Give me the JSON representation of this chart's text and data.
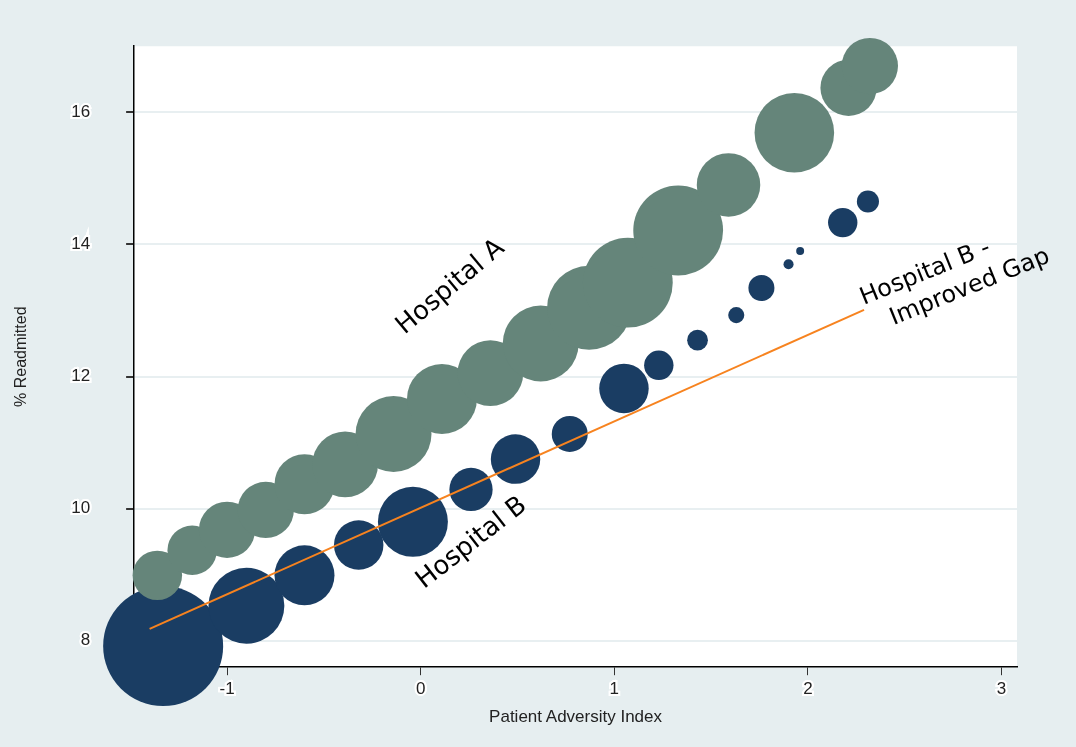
{
  "chart_data": {
    "type": "bubble",
    "xlabel": "Patient Adversity Index",
    "ylabel": "% Readmitted",
    "xlim": [
      -1.48,
      3.08
    ],
    "xticks": [
      -1,
      0,
      1,
      2,
      3
    ],
    "ylim": [
      7.6,
      17.0
    ],
    "yticks": [
      8,
      10,
      12,
      14,
      16
    ],
    "grid": "y",
    "legend": false,
    "series": [
      {
        "name": "Hospital A",
        "color": "#65857a",
        "x": [
          -1.36,
          -1.18,
          -1.0,
          -0.8,
          -0.6,
          -0.39,
          -0.14,
          0.11,
          0.36,
          0.62,
          0.87,
          1.07,
          1.33,
          1.59,
          1.93,
          2.21,
          2.32
        ],
        "values": [
          8.99,
          9.37,
          9.68,
          9.98,
          10.37,
          10.67,
          11.13,
          11.66,
          12.05,
          12.5,
          13.04,
          13.42,
          14.21,
          14.9,
          15.69,
          16.37,
          16.7
        ],
        "sizes": [
          0.17,
          0.17,
          0.22,
          0.22,
          0.25,
          0.3,
          0.4,
          0.34,
          0.3,
          0.4,
          0.49,
          0.56,
          0.56,
          0.28,
          0.44,
          0.22,
          0.22
        ]
      },
      {
        "name": "Hospital B",
        "color": "#1a3d63",
        "x": [
          -1.33,
          -0.9,
          -0.6,
          -0.32,
          -0.04,
          0.26,
          0.49,
          0.77,
          1.05,
          1.23,
          1.43,
          1.63,
          1.76,
          1.9,
          1.96,
          2.18,
          2.31
        ],
        "values": [
          7.92,
          8.53,
          8.99,
          9.45,
          9.8,
          10.29,
          10.75,
          11.13,
          11.82,
          12.17,
          12.55,
          12.93,
          13.34,
          13.7,
          13.9,
          14.33,
          14.65
        ],
        "sizes": [
          1,
          0.4,
          0.25,
          0.17,
          0.34,
          0.13,
          0.17,
          0.09,
          0.17,
          0.06,
          0.03,
          0.018,
          0.047,
          0.007,
          0.0044,
          0.06,
          0.034
        ]
      },
      {
        "name": "Hospital B - Improved Gap",
        "type": "line",
        "color": "#f7831f",
        "x": [
          -1.4,
          2.29
        ],
        "values": [
          8.18,
          13.01
        ]
      }
    ]
  }
}
